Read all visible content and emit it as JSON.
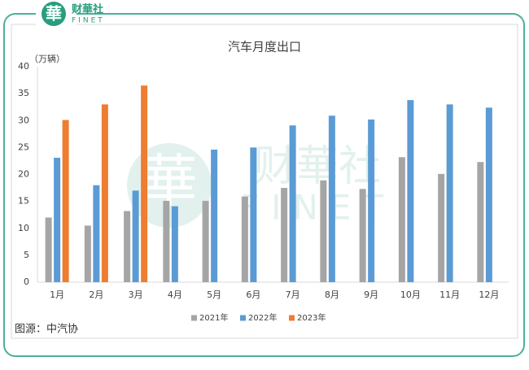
{
  "logo": {
    "mark": "華",
    "name": "财華社",
    "sub": "FINET"
  },
  "chart_data": {
    "type": "bar",
    "title": "汽车月度出口",
    "y_label": "（万辆）",
    "categories": [
      "1月",
      "2月",
      "3月",
      "4月",
      "5月",
      "6月",
      "7月",
      "8月",
      "9月",
      "10月",
      "11月",
      "12月"
    ],
    "series": [
      {
        "name": "2021年",
        "color": "#a5a5a5",
        "values": [
          12,
          10.5,
          13.2,
          15.1,
          15.1,
          15.9,
          17.5,
          18.9,
          17.3,
          23.2,
          20.1,
          22.3
        ]
      },
      {
        "name": "2022年",
        "color": "#5b9bd5",
        "values": [
          23.1,
          18,
          17,
          14.1,
          24.6,
          25,
          29.1,
          30.9,
          30.2,
          33.8,
          33,
          32.4
        ]
      },
      {
        "name": "2023年",
        "color": "#ed7d31",
        "values": [
          30.1,
          33,
          36.5,
          null,
          null,
          null,
          null,
          null,
          null,
          null,
          null,
          null
        ]
      }
    ],
    "ylim": [
      0,
      40
    ],
    "yticks": [
      0,
      5,
      10,
      15,
      20,
      25,
      30,
      35,
      40
    ],
    "legend": "bottom",
    "source": "图源：中汽协"
  }
}
